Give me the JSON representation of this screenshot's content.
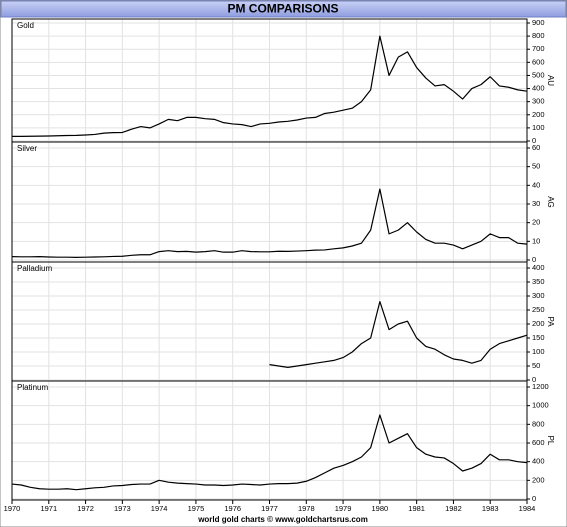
{
  "title": "PM COMPARISONS",
  "footer": "world gold charts © www.goldchartsrus.com",
  "chart_data": [
    {
      "type": "line",
      "title": "Gold",
      "ylabel": "AU",
      "color": "#000000",
      "grid": true,
      "xlim": [
        1970,
        1984
      ],
      "xticks": [
        1970,
        1971,
        1972,
        1973,
        1974,
        1975,
        1976,
        1977,
        1978,
        1979,
        1980,
        1981,
        1982,
        1983,
        1984
      ],
      "ylim": [
        0,
        900
      ],
      "yticks": [
        0,
        100,
        200,
        300,
        400,
        500,
        600,
        700,
        800,
        900
      ],
      "x": [
        1970,
        1970.25,
        1970.5,
        1970.75,
        1971,
        1971.25,
        1971.5,
        1971.75,
        1972,
        1972.25,
        1972.5,
        1972.75,
        1973,
        1973.25,
        1973.5,
        1973.75,
        1974,
        1974.25,
        1974.5,
        1974.75,
        1975,
        1975.25,
        1975.5,
        1975.75,
        1976,
        1976.25,
        1976.5,
        1976.75,
        1977,
        1977.25,
        1977.5,
        1977.75,
        1978,
        1978.25,
        1978.5,
        1978.75,
        1979,
        1979.25,
        1979.5,
        1979.75,
        1980,
        1980.25,
        1980.5,
        1980.75,
        1981,
        1981.25,
        1981.5,
        1981.75,
        1982,
        1982.25,
        1982.5,
        1982.75,
        1983,
        1983.25,
        1983.5,
        1983.75,
        1984
      ],
      "values": [
        35,
        35,
        36,
        37,
        38,
        40,
        42,
        43,
        46,
        50,
        60,
        64,
        65,
        90,
        110,
        100,
        130,
        165,
        155,
        180,
        180,
        170,
        165,
        140,
        130,
        125,
        110,
        130,
        135,
        145,
        150,
        160,
        175,
        180,
        210,
        220,
        235,
        250,
        300,
        390,
        800,
        500,
        640,
        680,
        560,
        480,
        420,
        430,
        380,
        320,
        400,
        430,
        490,
        420,
        410,
        390,
        380
      ]
    },
    {
      "type": "line",
      "title": "Silver",
      "ylabel": "AG",
      "color": "#000000",
      "grid": true,
      "xlim": [
        1970,
        1984
      ],
      "xticks": [
        1970,
        1971,
        1972,
        1973,
        1974,
        1975,
        1976,
        1977,
        1978,
        1979,
        1980,
        1981,
        1982,
        1983,
        1984
      ],
      "ylim": [
        0,
        60
      ],
      "yticks": [
        0,
        10,
        20,
        30,
        40,
        50,
        60
      ],
      "x": [
        1970,
        1970.25,
        1970.5,
        1970.75,
        1971,
        1971.25,
        1971.5,
        1971.75,
        1972,
        1972.25,
        1972.5,
        1972.75,
        1973,
        1973.25,
        1973.5,
        1973.75,
        1974,
        1974.25,
        1974.5,
        1974.75,
        1975,
        1975.25,
        1975.5,
        1975.75,
        1976,
        1976.25,
        1976.5,
        1976.75,
        1977,
        1977.25,
        1977.5,
        1977.75,
        1978,
        1978.25,
        1978.5,
        1978.75,
        1979,
        1979.25,
        1979.5,
        1979.75,
        1980,
        1980.25,
        1980.5,
        1980.75,
        1981,
        1981.25,
        1981.5,
        1981.75,
        1982,
        1982.25,
        1982.5,
        1982.75,
        1983,
        1983.25,
        1983.5,
        1983.75,
        1984
      ],
      "values": [
        1.8,
        1.7,
        1.7,
        1.8,
        1.6,
        1.5,
        1.5,
        1.4,
        1.5,
        1.6,
        1.7,
        1.9,
        2.0,
        2.5,
        2.8,
        2.8,
        4.5,
        5.0,
        4.5,
        4.6,
        4.2,
        4.5,
        5.0,
        4.2,
        4.2,
        5.0,
        4.5,
        4.4,
        4.4,
        4.7,
        4.6,
        4.8,
        5.0,
        5.3,
        5.4,
        6.0,
        6.5,
        7.5,
        9.0,
        16,
        38,
        14,
        16,
        20,
        15,
        11,
        9,
        9,
        8,
        6,
        8,
        10,
        14,
        12,
        12,
        9,
        8.5
      ]
    },
    {
      "type": "line",
      "title": "Palladium",
      "ylabel": "PA",
      "color": "#000000",
      "grid": true,
      "xlim": [
        1970,
        1984
      ],
      "xticks": [
        1970,
        1971,
        1972,
        1973,
        1974,
        1975,
        1976,
        1977,
        1978,
        1979,
        1980,
        1981,
        1982,
        1983,
        1984
      ],
      "ylim": [
        0,
        400
      ],
      "yticks": [
        0,
        50,
        100,
        150,
        200,
        250,
        300,
        350,
        400
      ],
      "x": [
        1970,
        1970.25,
        1970.5,
        1970.75,
        1971,
        1971.25,
        1971.5,
        1971.75,
        1972,
        1972.25,
        1972.5,
        1972.75,
        1973,
        1973.25,
        1973.5,
        1973.75,
        1974,
        1974.25,
        1974.5,
        1974.75,
        1975,
        1975.25,
        1975.5,
        1975.75,
        1976,
        1976.25,
        1976.5,
        1976.75,
        1977,
        1977.25,
        1977.5,
        1977.75,
        1978,
        1978.25,
        1978.5,
        1978.75,
        1979,
        1979.25,
        1979.5,
        1979.75,
        1980,
        1980.25,
        1980.5,
        1980.75,
        1981,
        1981.25,
        1981.5,
        1981.75,
        1982,
        1982.25,
        1982.5,
        1982.75,
        1983,
        1983.25,
        1983.5,
        1983.75,
        1984
      ],
      "values": [
        null,
        null,
        null,
        null,
        null,
        null,
        null,
        null,
        null,
        null,
        null,
        null,
        null,
        null,
        null,
        null,
        null,
        null,
        null,
        null,
        null,
        null,
        null,
        null,
        null,
        null,
        null,
        null,
        55,
        50,
        45,
        50,
        55,
        60,
        65,
        70,
        80,
        100,
        130,
        150,
        280,
        180,
        200,
        210,
        150,
        120,
        110,
        90,
        75,
        70,
        60,
        70,
        110,
        130,
        140,
        150,
        160
      ]
    },
    {
      "type": "line",
      "title": "Platinum",
      "ylabel": "PL",
      "color": "#000000",
      "grid": true,
      "xlim": [
        1970,
        1984
      ],
      "xticks": [
        1970,
        1971,
        1972,
        1973,
        1974,
        1975,
        1976,
        1977,
        1978,
        1979,
        1980,
        1981,
        1982,
        1983,
        1984
      ],
      "ylim": [
        0,
        1200
      ],
      "yticks": [
        0,
        200,
        400,
        600,
        800,
        1000,
        1200
      ],
      "x": [
        1970,
        1970.25,
        1970.5,
        1970.75,
        1971,
        1971.25,
        1971.5,
        1971.75,
        1972,
        1972.25,
        1972.5,
        1972.75,
        1973,
        1973.25,
        1973.5,
        1973.75,
        1974,
        1974.25,
        1974.5,
        1974.75,
        1975,
        1975.25,
        1975.5,
        1975.75,
        1976,
        1976.25,
        1976.5,
        1976.75,
        1977,
        1977.25,
        1977.5,
        1977.75,
        1978,
        1978.25,
        1978.5,
        1978.75,
        1979,
        1979.25,
        1979.5,
        1979.75,
        1980,
        1980.25,
        1980.5,
        1980.75,
        1981,
        1981.25,
        1981.5,
        1981.75,
        1982,
        1982.25,
        1982.5,
        1982.75,
        1983,
        1983.25,
        1983.5,
        1983.75,
        1984
      ],
      "values": [
        160,
        150,
        125,
        110,
        105,
        105,
        110,
        100,
        110,
        120,
        125,
        140,
        145,
        155,
        160,
        160,
        200,
        180,
        170,
        165,
        160,
        150,
        150,
        145,
        150,
        160,
        155,
        150,
        160,
        165,
        165,
        170,
        190,
        230,
        280,
        330,
        360,
        400,
        450,
        550,
        900,
        600,
        650,
        700,
        550,
        480,
        450,
        440,
        380,
        300,
        330,
        380,
        480,
        420,
        420,
        400,
        390
      ]
    }
  ]
}
